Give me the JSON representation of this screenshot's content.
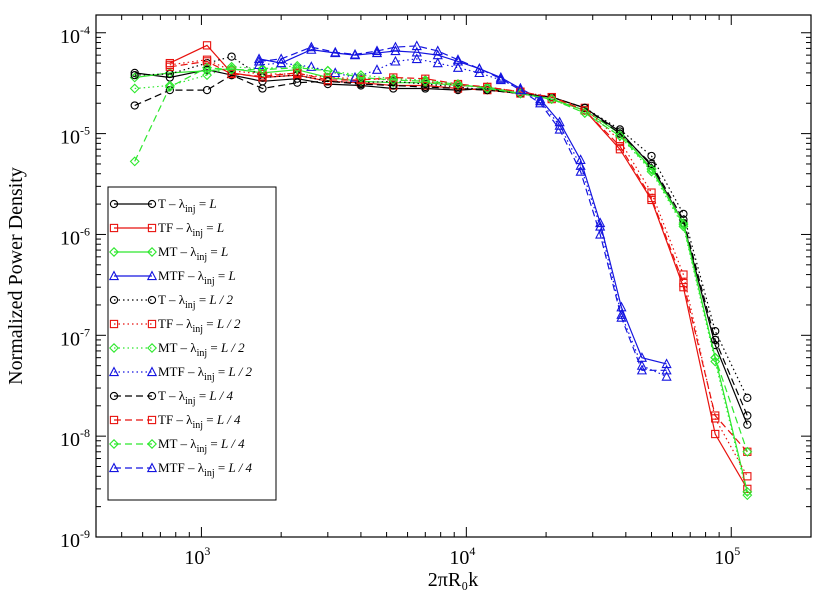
{
  "chart_data": {
    "type": "line",
    "title": "",
    "xlabel": "2πR₀k",
    "ylabel": "Normalized Power Density",
    "xscale": "log",
    "yscale": "log",
    "xlim": [
      400,
      200000
    ],
    "ylim": [
      1e-09,
      0.00015
    ],
    "xticks": [
      {
        "value": 1000,
        "base": "10",
        "exp": "3"
      },
      {
        "value": 10000,
        "base": "10",
        "exp": "4"
      },
      {
        "value": 100000,
        "base": "10",
        "exp": "5"
      }
    ],
    "yticks": [
      {
        "value": 1e-09,
        "base": "10",
        "exp": "-9"
      },
      {
        "value": 1e-08,
        "base": "10",
        "exp": "-8"
      },
      {
        "value": 1e-07,
        "base": "10",
        "exp": "-7"
      },
      {
        "value": 1e-06,
        "base": "10",
        "exp": "-6"
      },
      {
        "value": 1e-05,
        "base": "10",
        "exp": "-5"
      },
      {
        "value": 0.0001,
        "base": "10",
        "exp": "-4"
      }
    ],
    "legend_position": "middle-left",
    "colors": {
      "T": "#000000",
      "TF": "#e8120e",
      "MT": "#2ee82e",
      "MTF": "#1414e0"
    },
    "series": [
      {
        "name": "T – λinj = L",
        "model": "T",
        "label": "L",
        "dash": "solid",
        "marker": "circle",
        "x": [
          560,
          760,
          1050,
          1300,
          1700,
          2300,
          3000,
          4000,
          5300,
          7000,
          9300,
          12000,
          16000,
          21000,
          28000,
          38000,
          50000,
          66000,
          87000,
          115000
        ],
        "y": [
          4e-05,
          3.6e-05,
          4.3e-05,
          3.8e-05,
          3.3e-05,
          3.5e-05,
          3.1e-05,
          3e-05,
          2.8e-05,
          2.8e-05,
          2.7e-05,
          2.8e-05,
          2.5e-05,
          2.3e-05,
          1.8e-05,
          1.05e-05,
          4.8e-06,
          1.3e-06,
          8e-08,
          1.3e-08
        ]
      },
      {
        "name": "TF – λinj = L",
        "model": "TF",
        "label": "L",
        "dash": "solid",
        "marker": "square",
        "x": [
          760,
          1050,
          1300,
          1700,
          2300,
          3000,
          4000,
          5300,
          7000,
          9300,
          12000,
          16000,
          21000,
          28000,
          38000,
          50000,
          66000,
          87000,
          115000
        ],
        "y": [
          5e-05,
          7.5e-05,
          4e-05,
          3.6e-05,
          3.8e-05,
          3.3e-05,
          3.2e-05,
          3e-05,
          3e-05,
          2.8e-05,
          2.7e-05,
          2.5e-05,
          2.2e-05,
          1.7e-05,
          7e-06,
          2.2e-06,
          3e-07,
          1.05e-08,
          3e-09
        ]
      },
      {
        "name": "MT – λinj = L",
        "model": "MT",
        "label": "L",
        "dash": "solid",
        "marker": "diamond",
        "x": [
          560,
          760,
          1050,
          1300,
          1700,
          2300,
          3000,
          4000,
          5300,
          7000,
          9300,
          12000,
          16000,
          21000,
          28000,
          38000,
          50000,
          66000,
          87000,
          115000
        ],
        "y": [
          3.6e-05,
          4e-05,
          4.2e-05,
          4.4e-05,
          4e-05,
          4.3e-05,
          3.6e-05,
          3.3e-05,
          3.2e-05,
          3.2e-05,
          3e-05,
          2.9e-05,
          2.5e-05,
          2.2e-05,
          1.7e-05,
          1e-05,
          4.5e-06,
          1.3e-06,
          6e-08,
          2.8e-09
        ]
      },
      {
        "name": "MTF – λinj = L",
        "model": "MTF",
        "label": "L",
        "dash": "solid",
        "marker": "triangle",
        "x": [
          1650,
          2000,
          2600,
          3200,
          3800,
          4600,
          5400,
          6500,
          7800,
          9300,
          11200,
          13500,
          16000,
          19000,
          22500,
          27000,
          32000,
          38500,
          46000,
          57000
        ],
        "y": [
          5.5e-05,
          5e-05,
          6.8e-05,
          6.3e-05,
          6e-05,
          6.3e-05,
          6.6e-05,
          6.4e-05,
          6e-05,
          5.2e-05,
          4.4e-05,
          3.6e-05,
          2.8e-05,
          2.2e-05,
          1.3e-05,
          5.5e-06,
          1.3e-06,
          1.9e-07,
          6e-08,
          5.2e-08
        ]
      },
      {
        "name": "T – λinj = L / 2",
        "model": "T",
        "label": "L / 2",
        "dash": "dotted",
        "marker": "circle",
        "x": [
          560,
          760,
          1050,
          1300,
          1700,
          2300,
          3000,
          4000,
          5300,
          7000,
          9300,
          12000,
          16000,
          21000,
          28000,
          38000,
          50000,
          66000,
          87000,
          115000
        ],
        "y": [
          3.8e-05,
          3.9e-05,
          5e-05,
          5.8e-05,
          3.6e-05,
          3.8e-05,
          3.3e-05,
          3.2e-05,
          3.3e-05,
          3.1e-05,
          2.9e-05,
          2.7e-05,
          2.5e-05,
          2.3e-05,
          1.8e-05,
          1.1e-05,
          6e-06,
          1.6e-06,
          1.1e-07,
          2.4e-08
        ]
      },
      {
        "name": "TF – λinj = L / 2",
        "model": "TF",
        "label": "L / 2",
        "dash": "dotted",
        "marker": "square",
        "x": [
          760,
          1050,
          1300,
          1700,
          2300,
          3000,
          4000,
          5300,
          7000,
          9300,
          12000,
          16000,
          21000,
          28000,
          38000,
          50000,
          66000,
          87000,
          115000
        ],
        "y": [
          4.8e-05,
          5.4e-05,
          4.2e-05,
          3.9e-05,
          3.9e-05,
          3.6e-05,
          3.5e-05,
          3.4e-05,
          3.3e-05,
          3e-05,
          2.9e-05,
          2.6e-05,
          2.3e-05,
          1.8e-05,
          8.5e-06,
          2.6e-06,
          4e-07,
          1.5e-08,
          4e-09
        ]
      },
      {
        "name": "MT – λinj = L / 2",
        "model": "MT",
        "label": "L / 2",
        "dash": "dotted",
        "marker": "diamond",
        "x": [
          560,
          760,
          1050,
          1300,
          1700,
          2300,
          3000,
          4000,
          5300,
          7000,
          9300,
          12000,
          16000,
          21000,
          28000,
          38000,
          50000,
          66000,
          87000,
          115000
        ],
        "y": [
          2.8e-05,
          3e-05,
          3.8e-05,
          4.6e-05,
          4.4e-05,
          4.7e-05,
          4.2e-05,
          3.8e-05,
          3.5e-05,
          3.4e-05,
          3.1e-05,
          2.8e-05,
          2.5e-05,
          2.2e-05,
          1.6e-05,
          9.5e-06,
          4.2e-06,
          1.2e-06,
          5.5e-08,
          2.6e-09
        ]
      },
      {
        "name": "MTF – λinj = L / 2",
        "model": "MTF",
        "label": "L / 2",
        "dash": "dotted",
        "marker": "triangle",
        "x": [
          1650,
          2000,
          2600,
          3200,
          3800,
          4600,
          5400,
          6500,
          7800,
          9300,
          11200,
          13500,
          16000,
          19000,
          22500,
          27000,
          32000,
          38500,
          46000,
          57000
        ],
        "y": [
          4.8e-05,
          5e-05,
          4.6e-05,
          4e-05,
          3.6e-05,
          4.3e-05,
          5.2e-05,
          5.5e-05,
          5e-05,
          4.5e-05,
          4e-05,
          3.4e-05,
          2.8e-05,
          2.1e-05,
          1.2e-05,
          4.8e-06,
          1.2e-06,
          1.6e-07,
          5e-08,
          3.9e-08
        ]
      },
      {
        "name": "T – λinj = L / 4",
        "model": "T",
        "label": "L / 4",
        "dash": "dashed",
        "marker": "circle",
        "x": [
          560,
          760,
          1050,
          1300,
          1700,
          2300,
          3000,
          4000,
          5300,
          7000,
          9300,
          12000,
          16000,
          21000,
          28000,
          38000,
          50000,
          66000,
          87000,
          115000
        ],
        "y": [
          1.9e-05,
          2.7e-05,
          2.7e-05,
          3.8e-05,
          2.8e-05,
          3.2e-05,
          3.3e-05,
          3.1e-05,
          3e-05,
          2.9e-05,
          2.8e-05,
          2.7e-05,
          2.5e-05,
          2.3e-05,
          1.8e-05,
          1e-05,
          5e-06,
          1.4e-06,
          9e-08,
          1.6e-08
        ]
      },
      {
        "name": "TF – λinj = L / 4",
        "model": "TF",
        "label": "L / 4",
        "dash": "dashed",
        "marker": "square",
        "x": [
          760,
          1050,
          1300,
          1700,
          2300,
          3000,
          4000,
          5300,
          7000,
          9300,
          12000,
          16000,
          21000,
          28000,
          38000,
          50000,
          66000,
          87000,
          115000
        ],
        "y": [
          4.6e-05,
          5.2e-05,
          3.9e-05,
          3.7e-05,
          4e-05,
          3.4e-05,
          3.4e-05,
          3.6e-05,
          3.5e-05,
          3.1e-05,
          2.9e-05,
          2.6e-05,
          2.3e-05,
          1.7e-05,
          7.5e-06,
          2.3e-06,
          3.3e-07,
          1.6e-08,
          7e-09
        ]
      },
      {
        "name": "MT – λinj = L / 4",
        "model": "MT",
        "label": "L / 4",
        "dash": "dashed",
        "marker": "diamond",
        "x": [
          560,
          760,
          1050,
          1300,
          1700,
          2300,
          3000,
          4000,
          5300,
          7000,
          9300,
          12000,
          16000,
          21000,
          28000,
          38000,
          50000,
          66000,
          87000,
          115000
        ],
        "y": [
          5.3e-06,
          2.9e-05,
          4.5e-05,
          4.3e-05,
          4.3e-05,
          4.5e-05,
          4.2e-05,
          3.6e-05,
          3.4e-05,
          3.3e-05,
          3.1e-05,
          2.8e-05,
          2.5e-05,
          2.2e-05,
          1.6e-05,
          9.5e-06,
          4.4e-06,
          1.25e-06,
          6e-08,
          7e-09
        ]
      },
      {
        "name": "MTF – λinj = L / 4",
        "model": "MTF",
        "label": "L / 4",
        "dash": "dashed",
        "marker": "triangle",
        "x": [
          1650,
          2000,
          2600,
          3200,
          3800,
          4600,
          5400,
          6500,
          7800,
          9300,
          11200,
          13500,
          16000,
          19000,
          22500,
          27000,
          32000,
          38500,
          46000,
          57000
        ],
        "y": [
          5.2e-05,
          5.5e-05,
          7.2e-05,
          6.4e-05,
          6.1e-05,
          6.6e-05,
          7.2e-05,
          7.4e-05,
          6.6e-05,
          5.4e-05,
          4.4e-05,
          3.5e-05,
          2.7e-05,
          2e-05,
          1.1e-05,
          4.2e-06,
          1e-06,
          1.5e-07,
          4.5e-08,
          4.5e-08
        ]
      }
    ]
  }
}
